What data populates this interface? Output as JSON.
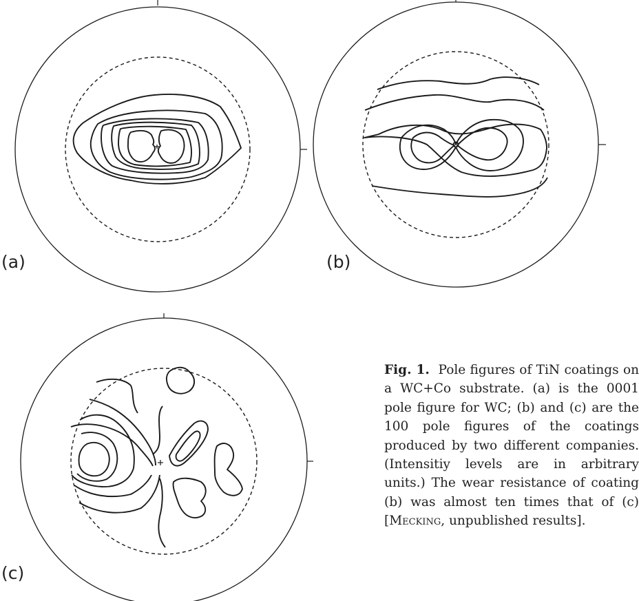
{
  "panels": [
    {
      "label": "(a)",
      "description": "0001 pole figure for WC"
    },
    {
      "label": "(b)",
      "description": "100 pole figure of coating (b)"
    },
    {
      "label": "(c)",
      "description": "100 pole figure of coating (c)"
    }
  ],
  "caption": {
    "figure_number": "Fig. 1.",
    "text_part1": "Pole figures of TiN coatings on a WC+Co substrate. (a) is the 0001 pole figure for WC; (b) and (c) are the 100 pole figures of the coatings produced by two different companies. (Intensitiy levels are in arbitrary units.) The wear resistance of coating (b) was almost ten times that of (c) [",
    "author_smallcaps": "Mecking",
    "text_part2": ", unpublished results]."
  }
}
